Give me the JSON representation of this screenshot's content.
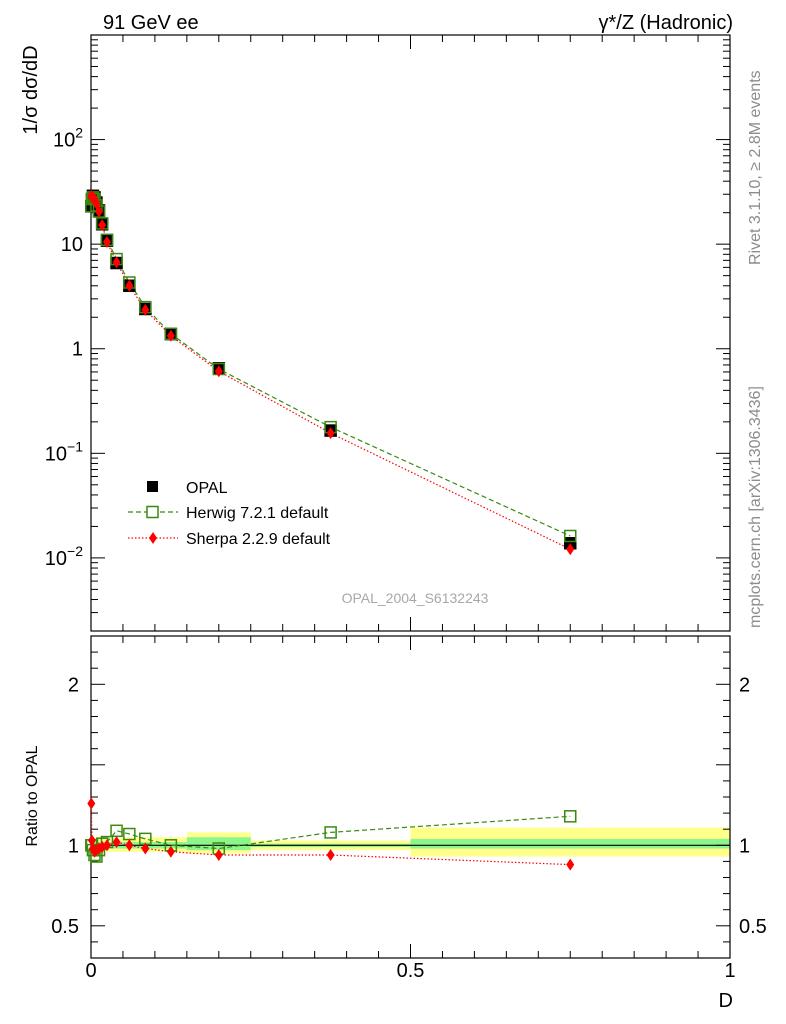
{
  "header": {
    "left_title": "91 GeV ee",
    "right_title": "γ*/Z (Hadronic)"
  },
  "side_labels": {
    "rivet": "Rivet 3.1.10, ≥ 2.8M events",
    "source": "mcplots.cern.ch [arXiv:1306.3436]"
  },
  "analysis_id": "OPAL_2004_S6132243",
  "colors": {
    "data": "#000000",
    "herwig": "#3a8a0f",
    "sherpa": "#ff0000",
    "band_inner": "#8cf58c",
    "band_outer": "#ffff8c"
  },
  "chart_data": [
    {
      "type": "scatter",
      "panel": "main",
      "ylabel": "1/σ dσ/dD",
      "yscale": "log",
      "ylim": [
        0.002,
        1000
      ],
      "xlim": [
        0,
        1
      ],
      "y_tick_labels": [
        "10^-2",
        "10^-1",
        "1",
        "10",
        "10^2"
      ],
      "legend_position": "bottom-left",
      "series": [
        {
          "name": "OPAL",
          "marker": "filled-square",
          "x": [
            0.0005,
            0.0015,
            0.003,
            0.0055,
            0.0085,
            0.0125,
            0.0175,
            0.025,
            0.04,
            0.06,
            0.085,
            0.125,
            0.2,
            0.375,
            0.75
          ],
          "y": [
            23,
            27,
            29,
            28,
            25,
            21,
            15.5,
            10.8,
            6.6,
            4.0,
            2.4,
            1.38,
            0.65,
            0.165,
            0.0138
          ]
        },
        {
          "name": "Herwig 7.2.1 default",
          "marker": "open-square",
          "line": "dashed",
          "x": [
            0.0005,
            0.0015,
            0.003,
            0.0055,
            0.0085,
            0.0125,
            0.0175,
            0.025,
            0.04,
            0.06,
            0.085,
            0.125,
            0.2,
            0.375,
            0.75
          ],
          "y": [
            23,
            27,
            28,
            27,
            23.5,
            20.5,
            15.8,
            11.0,
            7.2,
            4.3,
            2.5,
            1.39,
            0.64,
            0.178,
            0.0162
          ]
        },
        {
          "name": "Sherpa 2.2.9 default",
          "marker": "filled-diamond",
          "line": "dotted",
          "x": [
            0.0005,
            0.0015,
            0.003,
            0.0055,
            0.0085,
            0.0125,
            0.0175,
            0.025,
            0.04,
            0.06,
            0.085,
            0.125,
            0.2,
            0.375,
            0.75
          ],
          "y": [
            29,
            28,
            28,
            27,
            24.5,
            20.5,
            15.2,
            10.5,
            6.7,
            4.0,
            2.35,
            1.33,
            0.61,
            0.156,
            0.0121
          ]
        }
      ]
    },
    {
      "type": "scatter",
      "panel": "ratio",
      "ylabel": "Ratio to OPAL",
      "xlabel": "D",
      "ylim": [
        0.3,
        2.3
      ],
      "xlim": [
        0,
        1
      ],
      "y_tick_labels": [
        "0.5",
        "1",
        "2"
      ],
      "x_tick_labels": [
        "0",
        "0.5",
        "1"
      ],
      "series": [
        {
          "name": "Herwig 7.2.1 default",
          "x": [
            0.0005,
            0.0015,
            0.003,
            0.0055,
            0.0085,
            0.0125,
            0.0175,
            0.025,
            0.04,
            0.06,
            0.085,
            0.125,
            0.2,
            0.375,
            0.75
          ],
          "y": [
            1.0,
            1.0,
            0.97,
            0.94,
            0.93,
            0.97,
            1.01,
            1.02,
            1.09,
            1.07,
            1.04,
            1.0,
            0.98,
            1.08,
            1.18
          ]
        },
        {
          "name": "Sherpa 2.2.9 default",
          "x": [
            0.0005,
            0.0015,
            0.003,
            0.0055,
            0.0085,
            0.0125,
            0.0175,
            0.025,
            0.04,
            0.06,
            0.085,
            0.125,
            0.2,
            0.375,
            0.75
          ],
          "y": [
            1.26,
            1.03,
            0.98,
            0.96,
            0.97,
            0.98,
            0.99,
            1.0,
            1.02,
            1.0,
            0.98,
            0.96,
            0.94,
            0.94,
            0.88
          ]
        }
      ],
      "uncertainty_bands": [
        {
          "x_range": [
            0.0,
            0.02
          ],
          "inner": [
            0.98,
            1.02
          ],
          "outer": [
            0.95,
            1.05
          ]
        },
        {
          "x_range": [
            0.02,
            0.05
          ],
          "inner": [
            0.98,
            1.02
          ],
          "outer": [
            0.96,
            1.04
          ]
        },
        {
          "x_range": [
            0.05,
            0.15
          ],
          "inner": [
            0.98,
            1.02
          ],
          "outer": [
            0.96,
            1.05
          ]
        },
        {
          "x_range": [
            0.15,
            0.25
          ],
          "inner": [
            0.97,
            1.05
          ],
          "outer": [
            0.95,
            1.08
          ]
        },
        {
          "x_range": [
            0.25,
            0.5
          ],
          "inner": [
            0.99,
            1.01
          ],
          "outer": [
            0.97,
            1.03
          ]
        },
        {
          "x_range": [
            0.5,
            1.0
          ],
          "inner": [
            0.98,
            1.04
          ],
          "outer": [
            0.93,
            1.11
          ]
        }
      ]
    }
  ]
}
